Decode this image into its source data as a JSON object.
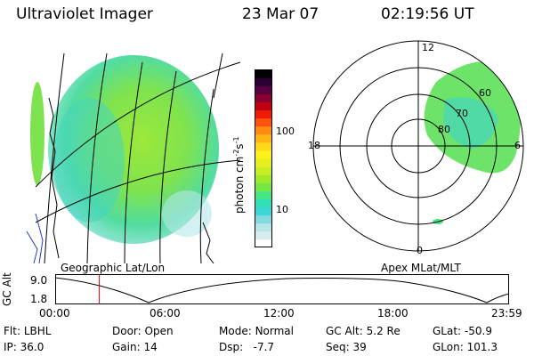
{
  "header": {
    "instrument": "Ultraviolet Imager",
    "date": "23 Mar 07",
    "time": "02:19:56 UT"
  },
  "geo_panel": {
    "label": "Geographic Lat/Lon"
  },
  "colorbar": {
    "unit": "photon cm",
    "unit_exp1": "-2",
    "unit_mid": "s",
    "unit_exp2": "-1",
    "ticks": [
      "100",
      "10"
    ],
    "colors": [
      "#ffffff",
      "#d8ecef",
      "#b6e6e6",
      "#7fdbe0",
      "#3cd6d6",
      "#2ee0b8",
      "#45e685",
      "#74e840",
      "#a0ea2a",
      "#c8ee22",
      "#e8ee1c",
      "#fff21a",
      "#ffd817",
      "#ffb614",
      "#ff8c10",
      "#ff500c",
      "#f01a08",
      "#c00010",
      "#8a0030",
      "#560042",
      "#2a0034",
      "#000000"
    ]
  },
  "polar_panel": {
    "label": "Apex MLat/MLT",
    "mlt_labels": [
      "12",
      "18",
      "6",
      "0"
    ],
    "lat_labels": [
      "60",
      "70",
      "80"
    ]
  },
  "altitude_strip": {
    "ylabel": "GC Alt",
    "yticks": [
      "9.0",
      "1.8"
    ],
    "xticks": [
      "00:00",
      "06:00",
      "12:00",
      "18:00",
      "23:59"
    ],
    "marker_time": "02:19:56",
    "marker_color": "#e00000"
  },
  "status": {
    "filter_label": "Flt:",
    "filter_value": "LBHL",
    "door_label": "Door:",
    "door_value": "Open",
    "mode_label": "Mode:",
    "mode_value": "Normal",
    "gcalt_label": "GC Alt:",
    "gcalt_value": "5.2 Re",
    "glat_label": "GLat:",
    "glat_value": "-50.9",
    "ip_label": "IP:",
    "ip_value": "36.0",
    "gain_label": "Gain:",
    "gain_value": "14",
    "dsp_label": "Dsp:",
    "dsp_value": "-7.7",
    "seq_label": "Seq:",
    "seq_value": "39",
    "glon_label": "GLon:",
    "glon_value": "101.3"
  }
}
